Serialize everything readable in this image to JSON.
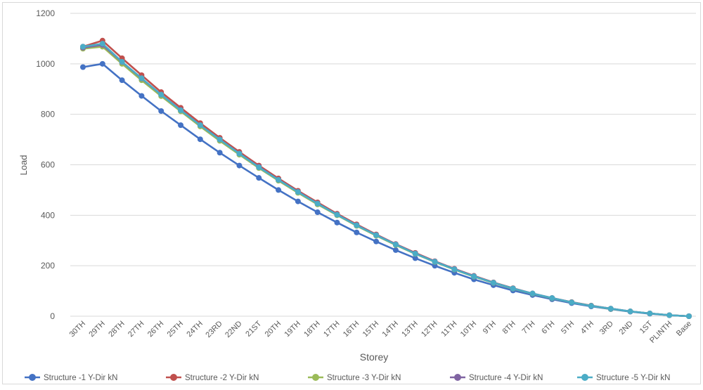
{
  "chart_data": {
    "type": "line",
    "xlabel": "Storey",
    "ylabel": "Load",
    "ylim": [
      0,
      1200
    ],
    "yticks": [
      0,
      200,
      400,
      600,
      800,
      1000,
      1200
    ],
    "grid": true,
    "legend_position": "bottom",
    "categories": [
      "30TH",
      "29TH",
      "28TH",
      "27TH",
      "26TH",
      "25TH",
      "24TH",
      "23RD",
      "22ND",
      "21ST",
      "20TH",
      "19TH",
      "18TH",
      "17TH",
      "16TH",
      "15TH",
      "14TH",
      "13TH",
      "12TH",
      "11TH",
      "10TH",
      "9TH",
      "8TH",
      "7TH",
      "6TH",
      "5TH",
      "4TH",
      "3RD",
      "2ND",
      "1ST",
      "PLINTH",
      "Base"
    ],
    "series": [
      {
        "name": "Structure -1 Y-Dir kN",
        "color": "#4472c4",
        "values": [
          987,
          1000,
          935,
          873,
          813,
          757,
          701,
          648,
          597,
          548,
          500,
          455,
          412,
          371,
          332,
          296,
          262,
          230,
          200,
          172,
          146,
          123,
          102,
          84,
          67,
          52,
          39,
          28,
          18,
          10,
          4,
          0
        ]
      },
      {
        "name": "Structure -2 Y-Dir kN",
        "color": "#c0504d",
        "values": [
          1068,
          1092,
          1022,
          955,
          888,
          826,
          765,
          707,
          651,
          597,
          546,
          497,
          451,
          406,
          364,
          324,
          286,
          251,
          218,
          188,
          160,
          134,
          111,
          90,
          72,
          56,
          42,
          30,
          19,
          11,
          4,
          0
        ]
      },
      {
        "name": "Structure -3 Y-Dir kN",
        "color": "#9bbb59",
        "values": [
          1060,
          1068,
          1000,
          935,
          872,
          812,
          752,
          695,
          640,
          587,
          537,
          489,
          443,
          400,
          358,
          319,
          282,
          247,
          215,
          185,
          157,
          132,
          109,
          89,
          71,
          55,
          41,
          29,
          19,
          11,
          4,
          0
        ]
      },
      {
        "name": "Structure -4 Y-Dir kN",
        "color": "#8064a2",
        "values": [
          1064,
          1075,
          1007,
          942,
          878,
          817,
          757,
          700,
          645,
          592,
          541,
          493,
          447,
          403,
          361,
          322,
          285,
          249,
          217,
          187,
          159,
          133,
          110,
          90,
          72,
          55,
          41,
          30,
          19,
          11,
          4,
          0
        ]
      },
      {
        "name": "Structure -5 Y-Dir kN",
        "color": "#4bacc6",
        "values": [
          1068,
          1080,
          1008,
          943,
          878,
          816,
          757,
          700,
          644,
          590,
          540,
          492,
          446,
          402,
          360,
          321,
          284,
          248,
          216,
          186,
          158,
          133,
          110,
          90,
          72,
          55,
          41,
          30,
          19,
          11,
          4,
          0
        ]
      }
    ]
  }
}
